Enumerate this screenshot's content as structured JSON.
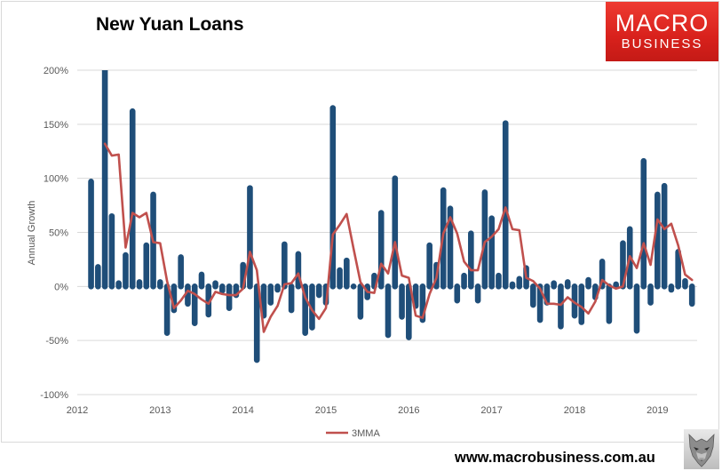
{
  "logo": {
    "line1": "MACRO",
    "line2": "BUSINESS"
  },
  "footer": {
    "url": "www.macrobusiness.com.au"
  },
  "chart_data": {
    "type": "bar",
    "title": "New Yuan Loans",
    "xlabel": "",
    "ylabel": "Annual Growth",
    "ylim": [
      -100,
      200
    ],
    "xlim": [
      "2012-01",
      "2019-07"
    ],
    "grid": true,
    "legend": "bottom",
    "yticks": {
      "values": [
        200,
        150,
        100,
        50,
        0,
        -50,
        -100
      ],
      "labels": [
        "200%",
        "150%",
        "100%",
        "50%",
        "0%",
        "-50%",
        "-100%"
      ]
    },
    "xticks": {
      "values": [
        "2012-01",
        "2013-01",
        "2014-01",
        "2015-01",
        "2016-01",
        "2017-01",
        "2018-01",
        "2019-01"
      ],
      "labels": [
        "2012",
        "2013",
        "2014",
        "2015",
        "2016",
        "2017",
        "2018",
        "2019"
      ]
    },
    "colors": {
      "bars": "#1f4e79",
      "line": "#c0504d",
      "grid": "#d9d9d9",
      "logo": "#e2231a"
    },
    "x": [
      "2012-03",
      "2012-04",
      "2012-05",
      "2012-06",
      "2012-07",
      "2012-08",
      "2012-09",
      "2012-10",
      "2012-11",
      "2012-12",
      "2013-01",
      "2013-02",
      "2013-03",
      "2013-04",
      "2013-05",
      "2013-06",
      "2013-07",
      "2013-08",
      "2013-09",
      "2013-10",
      "2013-11",
      "2013-12",
      "2014-01",
      "2014-02",
      "2014-03",
      "2014-04",
      "2014-05",
      "2014-06",
      "2014-07",
      "2014-08",
      "2014-09",
      "2014-10",
      "2014-11",
      "2014-12",
      "2015-01",
      "2015-02",
      "2015-03",
      "2015-04",
      "2015-05",
      "2015-06",
      "2015-07",
      "2015-08",
      "2015-09",
      "2015-10",
      "2015-11",
      "2015-12",
      "2016-01",
      "2016-02",
      "2016-03",
      "2016-04",
      "2016-05",
      "2016-06",
      "2016-07",
      "2016-08",
      "2016-09",
      "2016-10",
      "2016-11",
      "2016-12",
      "2017-01",
      "2017-02",
      "2017-03",
      "2017-04",
      "2017-05",
      "2017-06",
      "2017-07",
      "2017-08",
      "2017-09",
      "2017-10",
      "2017-11",
      "2017-12",
      "2018-01",
      "2018-02",
      "2018-03",
      "2018-04",
      "2018-05",
      "2018-06",
      "2018-07",
      "2018-08",
      "2018-09",
      "2018-10",
      "2018-11",
      "2018-12",
      "2019-01",
      "2019-02",
      "2019-03",
      "2019-04",
      "2019-05",
      "2019-06"
    ],
    "series": [
      {
        "type": "bar",
        "values": [
          97,
          18,
          200,
          65,
          3,
          29,
          162,
          4,
          38,
          85,
          4,
          -43,
          -22,
          27,
          -16,
          -34,
          11,
          -26,
          3,
          -4,
          -20,
          -8,
          20,
          91,
          -68,
          -27,
          -15,
          -3,
          39,
          -22,
          30,
          -43,
          -38,
          -8,
          -15,
          165,
          15,
          24,
          0,
          -28,
          -10,
          10,
          68,
          -45,
          100,
          -28,
          -47,
          -18,
          -31,
          38,
          20,
          89,
          72,
          -13,
          10,
          49,
          -13,
          87,
          63,
          10,
          151,
          2,
          7,
          17,
          -17,
          -31,
          -15,
          3,
          -37,
          4,
          -27,
          -33,
          6,
          -10,
          23,
          -32,
          2,
          40,
          53,
          -41,
          116,
          -15,
          85,
          93,
          -3,
          32,
          5,
          -16
        ]
      },
      {
        "name": "3MMA",
        "type": "line",
        "values": [
          null,
          null,
          132,
          121,
          122,
          36,
          68,
          64,
          68,
          41,
          40,
          5,
          -20,
          -13,
          -4,
          -7,
          -12,
          -16,
          -5,
          -7,
          -8,
          -8,
          -2,
          32,
          15,
          -42,
          -28,
          -18,
          2,
          3,
          12,
          -10,
          -22,
          -30,
          -20,
          48,
          57,
          67,
          35,
          4,
          -5,
          -6,
          21,
          12,
          41,
          10,
          8,
          -27,
          -29,
          -7,
          8,
          49,
          64,
          49,
          23,
          15,
          15,
          41,
          46,
          53,
          73,
          53,
          52,
          8,
          5,
          -2,
          -16,
          -16,
          -17,
          -10,
          -15,
          -19,
          -25,
          -14,
          6,
          1,
          -2,
          0,
          28,
          17,
          40,
          20,
          62,
          53,
          58,
          38,
          11,
          6
        ]
      }
    ]
  }
}
